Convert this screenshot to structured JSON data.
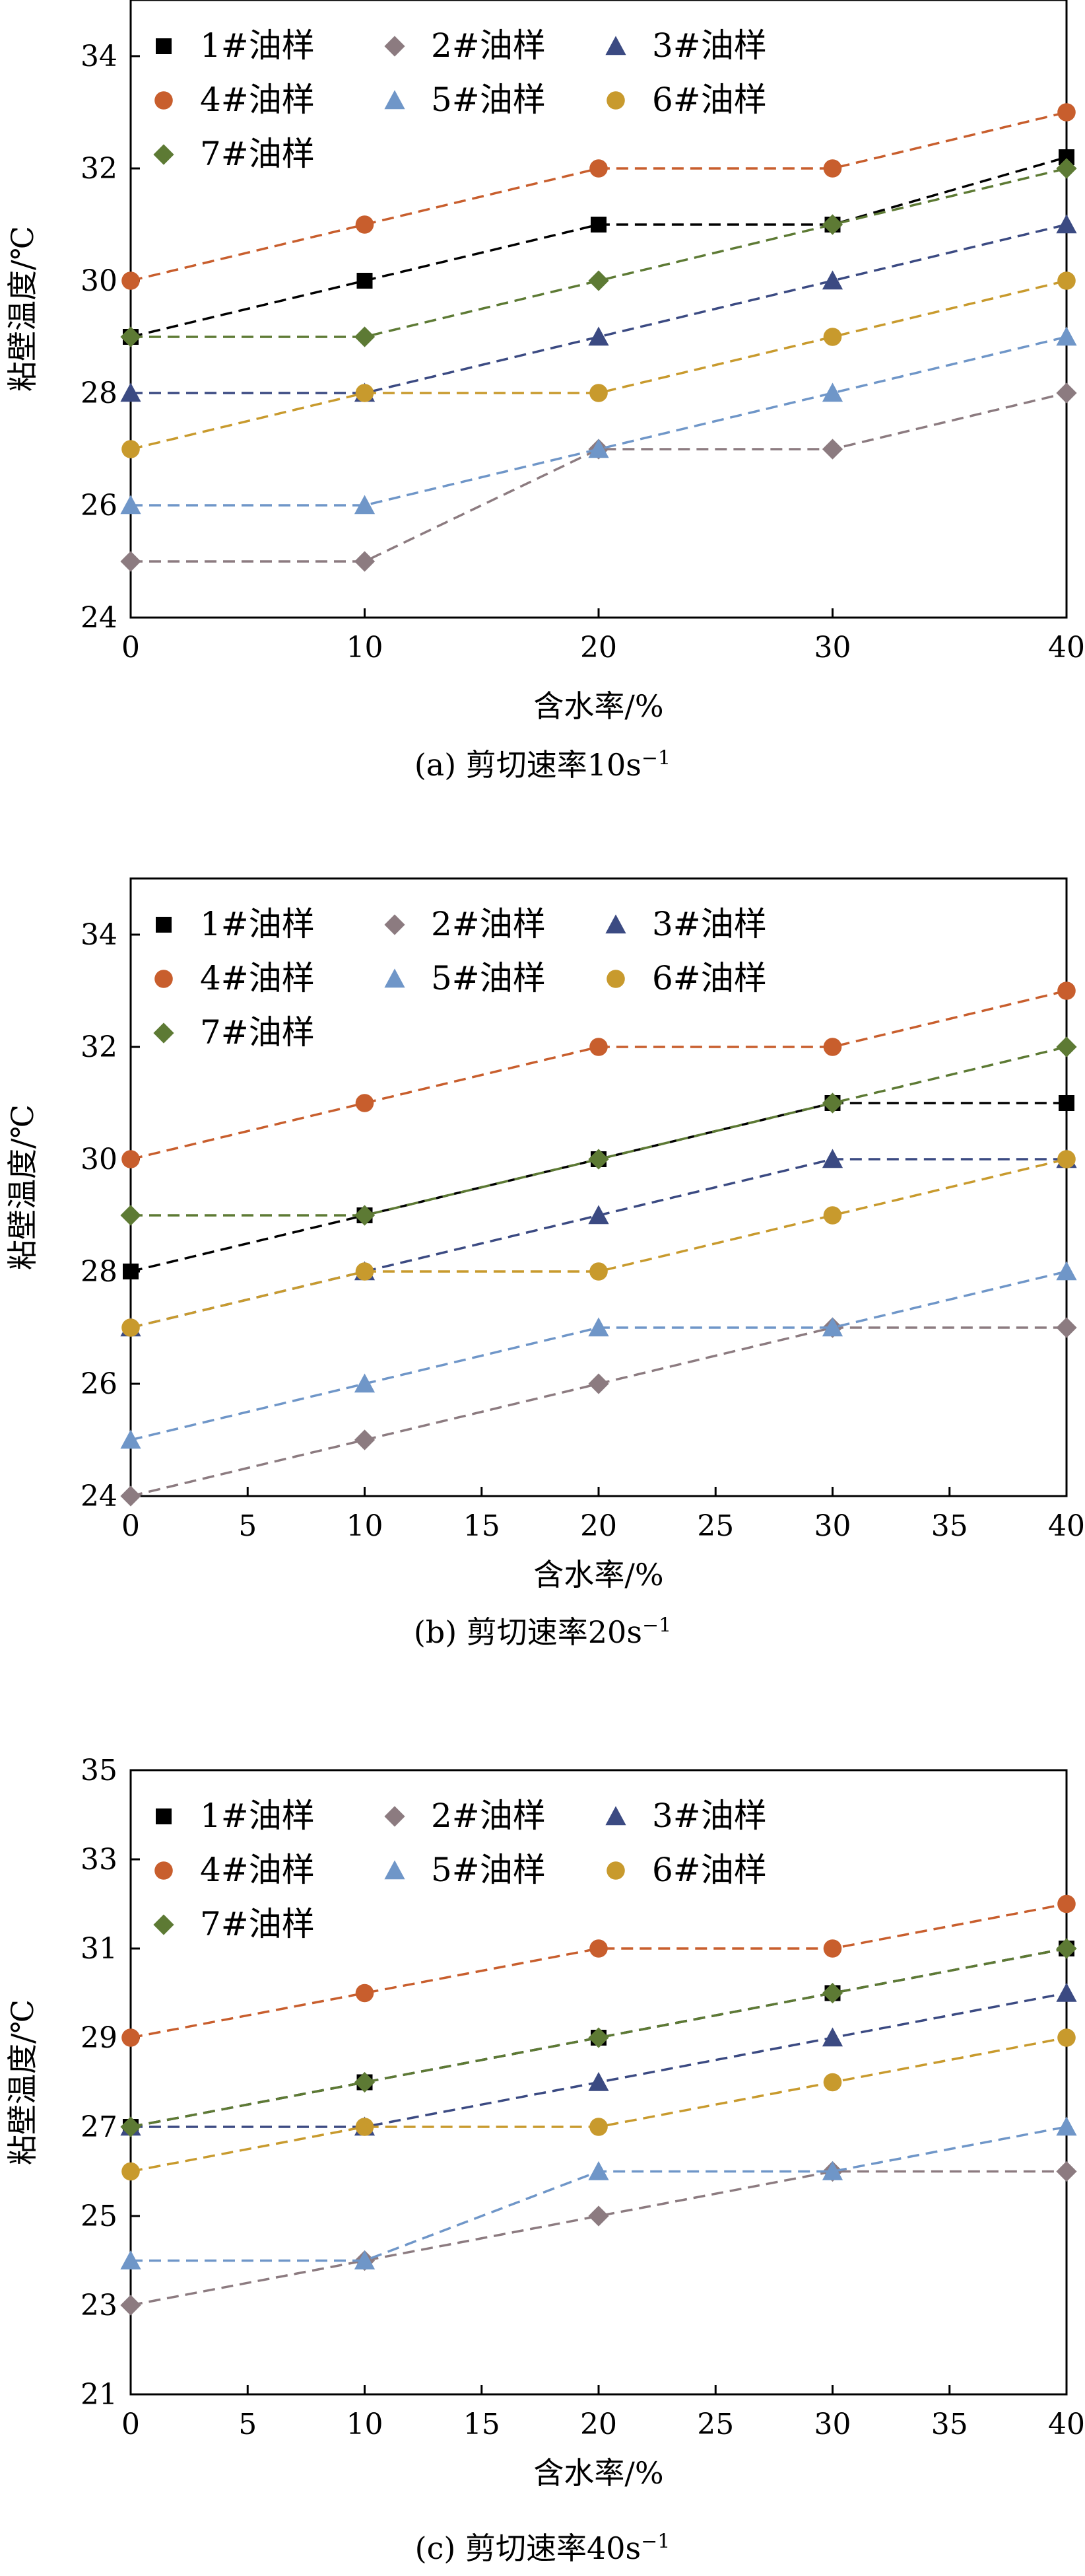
{
  "series_names": [
    "1#油样",
    "2#油样",
    "3#油样",
    "4#油样",
    "5#油样",
    "6#油样",
    "7#油样"
  ],
  "series_styles": [
    {
      "color": "#000000",
      "marker": "square"
    },
    {
      "color": "#8c7b80",
      "marker": "diamond"
    },
    {
      "color": "#3b4a82",
      "marker": "triangle"
    },
    {
      "color": "#c85e2d",
      "marker": "circle"
    },
    {
      "color": "#6f96c8",
      "marker": "triangle"
    },
    {
      "color": "#c89a2d",
      "marker": "circle"
    },
    {
      "color": "#5d7a34",
      "marker": "diamond"
    }
  ],
  "chart_data": [
    {
      "type": "line",
      "caption_prefix": "(a) 剪切速率10s",
      "caption_sup": "−1",
      "xlabel": "含水率/%",
      "ylabel": "粘壁温度/℃",
      "x": [
        0,
        10,
        20,
        30,
        40
      ],
      "xticks": [
        0,
        10,
        20,
        30,
        40
      ],
      "ylim": [
        24,
        35
      ],
      "yticks": [
        24,
        26,
        28,
        30,
        32,
        34
      ],
      "legend_position": "top-left",
      "series": [
        {
          "name": "1#油样",
          "values": [
            29,
            30,
            31,
            31,
            32.2
          ]
        },
        {
          "name": "2#油样",
          "values": [
            25,
            25,
            27,
            27,
            28
          ]
        },
        {
          "name": "3#油样",
          "values": [
            28,
            28,
            29,
            30,
            31
          ]
        },
        {
          "name": "4#油样",
          "values": [
            30,
            31,
            32,
            32,
            33
          ]
        },
        {
          "name": "5#油样",
          "values": [
            26,
            26,
            27,
            28,
            29
          ]
        },
        {
          "name": "6#油样",
          "values": [
            27,
            28,
            28,
            29,
            30
          ]
        },
        {
          "name": "7#油样",
          "values": [
            29,
            29,
            30,
            31,
            32
          ]
        }
      ]
    },
    {
      "type": "line",
      "caption_prefix": "(b) 剪切速率20s",
      "caption_sup": "−1",
      "xlabel": "含水率/%",
      "ylabel": "粘壁温度/℃",
      "x": [
        0,
        10,
        20,
        30,
        40
      ],
      "xticks": [
        0,
        5,
        10,
        15,
        20,
        25,
        30,
        35,
        40
      ],
      "ylim": [
        24,
        35
      ],
      "yticks": [
        24,
        26,
        28,
        30,
        32,
        34
      ],
      "legend_position": "top-left",
      "series": [
        {
          "name": "1#油样",
          "values": [
            28,
            29,
            30,
            31,
            31
          ]
        },
        {
          "name": "2#油样",
          "values": [
            24,
            25,
            26,
            27,
            27
          ]
        },
        {
          "name": "3#油样",
          "values": [
            27,
            28,
            29,
            30,
            30
          ]
        },
        {
          "name": "4#油样",
          "values": [
            30,
            31,
            32,
            32,
            33
          ]
        },
        {
          "name": "5#油样",
          "values": [
            25,
            26,
            27,
            27,
            28
          ]
        },
        {
          "name": "6#油样",
          "values": [
            27,
            28,
            28,
            29,
            30
          ]
        },
        {
          "name": "7#油样",
          "values": [
            29,
            29,
            30,
            31,
            32
          ]
        }
      ]
    },
    {
      "type": "line",
      "caption_prefix": "(c) 剪切速率40s",
      "caption_sup": "−1",
      "xlabel": "含水率/%",
      "ylabel": "粘壁温度/℃",
      "x": [
        0,
        10,
        20,
        30,
        40
      ],
      "xticks": [
        0,
        5,
        10,
        15,
        20,
        25,
        30,
        35,
        40
      ],
      "ylim": [
        21,
        35
      ],
      "yticks": [
        21,
        23,
        25,
        27,
        29,
        31,
        33,
        35
      ],
      "legend_position": "top-left",
      "series": [
        {
          "name": "1#油样",
          "values": [
            27,
            28,
            29,
            30,
            31
          ]
        },
        {
          "name": "2#油样",
          "values": [
            23,
            24,
            25,
            26,
            26
          ]
        },
        {
          "name": "3#油样",
          "values": [
            27,
            27,
            28,
            29,
            30
          ]
        },
        {
          "name": "4#油样",
          "values": [
            29,
            30,
            31,
            31,
            32
          ]
        },
        {
          "name": "5#油样",
          "values": [
            24,
            24,
            26,
            26,
            27
          ]
        },
        {
          "name": "6#油样",
          "values": [
            26,
            27,
            27,
            28,
            29
          ]
        },
        {
          "name": "7#油样",
          "values": [
            27,
            28,
            29,
            30,
            31
          ]
        }
      ]
    }
  ]
}
